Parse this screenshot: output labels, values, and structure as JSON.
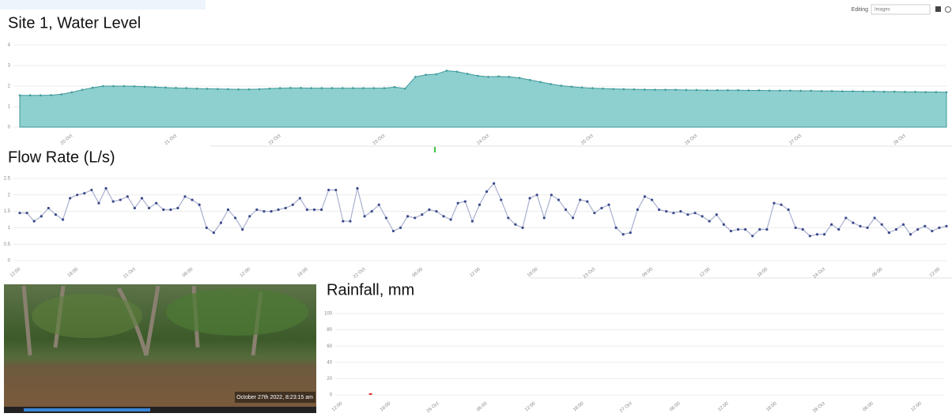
{
  "toolbar": {
    "editing_label": "Editing",
    "editing_value": "Images"
  },
  "photo": {
    "caption": "October 27th 2022, 8:23:15 am"
  },
  "chart_data": [
    {
      "type": "area",
      "title": "Site 1, Water Level",
      "color": "#8ecfcf",
      "line_color": "#3f9a9a",
      "values": [
        1.55,
        1.55,
        1.55,
        1.56,
        1.6,
        1.7,
        1.82,
        1.92,
        2.0,
        2.0,
        2.0,
        1.99,
        1.97,
        1.95,
        1.93,
        1.91,
        1.9,
        1.88,
        1.87,
        1.86,
        1.85,
        1.84,
        1.84,
        1.85,
        1.88,
        1.9,
        1.91,
        1.91,
        1.9,
        1.9,
        1.9,
        1.9,
        1.9,
        1.9,
        1.9,
        1.9,
        1.95,
        1.88,
        2.45,
        2.55,
        2.58,
        2.75,
        2.7,
        2.6,
        2.5,
        2.45,
        2.47,
        2.45,
        2.4,
        2.3,
        2.2,
        2.1,
        2.02,
        1.97,
        1.93,
        1.9,
        1.88,
        1.86,
        1.85,
        1.84,
        1.83,
        1.82,
        1.82,
        1.82,
        1.81,
        1.81,
        1.8,
        1.8,
        1.8,
        1.8,
        1.79,
        1.79,
        1.78,
        1.78,
        1.78,
        1.77,
        1.77,
        1.76,
        1.76,
        1.75,
        1.75,
        1.74,
        1.74,
        1.73,
        1.73,
        1.72,
        1.72,
        1.71,
        1.71,
        1.7
      ],
      "xlim": [
        0,
        89
      ],
      "xticks": [
        {
          "value": 5,
          "label": "20 Oct"
        },
        {
          "value": 15,
          "label": "21 Oct"
        },
        {
          "value": 25,
          "label": "22 Oct"
        },
        {
          "value": 35,
          "label": "23 Oct"
        },
        {
          "value": 45,
          "label": "24 Oct"
        },
        {
          "value": 55,
          "label": "25 Oct"
        },
        {
          "value": 65,
          "label": "26 Oct"
        },
        {
          "value": 75,
          "label": "27 Oct"
        },
        {
          "value": 85,
          "label": "28 Oct"
        }
      ],
      "ylim": [
        0,
        4
      ],
      "yticks": [
        0,
        1,
        2,
        3,
        4
      ],
      "grid": true
    },
    {
      "type": "line",
      "title": "Flow Rate (L/s)",
      "color": "#a9b0cf",
      "marker_color": "#3b4a8a",
      "values": [
        1.45,
        1.45,
        1.2,
        1.35,
        1.6,
        1.4,
        1.25,
        1.9,
        2.0,
        2.05,
        2.15,
        1.75,
        2.2,
        1.8,
        1.85,
        1.95,
        1.6,
        1.9,
        1.6,
        1.75,
        1.55,
        1.55,
        1.6,
        1.95,
        1.85,
        1.7,
        1.0,
        0.85,
        1.15,
        1.55,
        1.3,
        0.95,
        1.35,
        1.55,
        1.5,
        1.5,
        1.55,
        1.6,
        1.7,
        1.9,
        1.55,
        1.55,
        1.55,
        2.15,
        2.15,
        1.2,
        1.2,
        2.2,
        1.35,
        1.5,
        1.7,
        1.3,
        0.9,
        1.0,
        1.35,
        1.3,
        1.4,
        1.55,
        1.5,
        1.35,
        1.25,
        1.75,
        1.8,
        1.2,
        1.7,
        2.1,
        2.35,
        1.85,
        1.3,
        1.1,
        1.0,
        1.9,
        2.0,
        1.3,
        2.0,
        1.85,
        1.55,
        1.3,
        1.85,
        1.8,
        1.45,
        1.6,
        1.7,
        1.0,
        0.8,
        0.85,
        1.55,
        1.95,
        1.85,
        1.55,
        1.5,
        1.45,
        1.5,
        1.4,
        1.45,
        1.35,
        1.2,
        1.4,
        1.1,
        0.9,
        0.95,
        0.95,
        0.75,
        0.95,
        0.95,
        1.75,
        1.7,
        1.55,
        1.0,
        0.95,
        0.75,
        0.8,
        0.8,
        1.1,
        0.95,
        1.3,
        1.15,
        1.05,
        1.0,
        1.3,
        1.1,
        0.85,
        0.95,
        1.1,
        0.8,
        0.95,
        1.05,
        0.9,
        1.0,
        1.05
      ],
      "xlim": [
        0,
        129
      ],
      "xticks": [
        {
          "value": 0,
          "label": "12:00"
        },
        {
          "value": 8,
          "label": "18:00"
        },
        {
          "value": 16,
          "label": "21 Oct"
        },
        {
          "value": 24,
          "label": "06:00"
        },
        {
          "value": 32,
          "label": "12:00"
        },
        {
          "value": 40,
          "label": "18:00"
        },
        {
          "value": 48,
          "label": "22 Oct"
        },
        {
          "value": 56,
          "label": "06:00"
        },
        {
          "value": 64,
          "label": "12:00"
        },
        {
          "value": 72,
          "label": "18:00"
        },
        {
          "value": 80,
          "label": "23 Oct"
        },
        {
          "value": 88,
          "label": "06:00"
        },
        {
          "value": 96,
          "label": "12:00"
        },
        {
          "value": 104,
          "label": "18:00"
        },
        {
          "value": 112,
          "label": "24 Oct"
        },
        {
          "value": 120,
          "label": "06:00"
        },
        {
          "value": 128,
          "label": "12:00"
        }
      ],
      "ylim": [
        0,
        2.5
      ],
      "yticks": [
        0,
        0.5,
        1,
        1.5,
        2,
        2.5
      ],
      "grid": true
    },
    {
      "type": "scatter",
      "title": "Rainfall, mm",
      "color": "#e03030",
      "x": [
        0.6
      ],
      "values": [
        0
      ],
      "xlim": [
        0,
        12.5
      ],
      "xticks": [
        {
          "value": 0,
          "label": "12:00"
        },
        {
          "value": 1,
          "label": "18:00"
        },
        {
          "value": 2,
          "label": "26 Oct"
        },
        {
          "value": 3,
          "label": "06:00"
        },
        {
          "value": 4,
          "label": "12:00"
        },
        {
          "value": 5,
          "label": "18:00"
        },
        {
          "value": 6,
          "label": "27 Oct"
        },
        {
          "value": 7,
          "label": "06:00"
        },
        {
          "value": 8,
          "label": "12:00"
        },
        {
          "value": 9,
          "label": "18:00"
        },
        {
          "value": 10,
          "label": "28 Oct"
        },
        {
          "value": 11,
          "label": "06:00"
        },
        {
          "value": 12,
          "label": "12:00"
        }
      ],
      "ylim": [
        0,
        100
      ],
      "yticks": [
        0,
        20,
        40,
        60,
        80,
        100
      ],
      "grid": true
    }
  ]
}
